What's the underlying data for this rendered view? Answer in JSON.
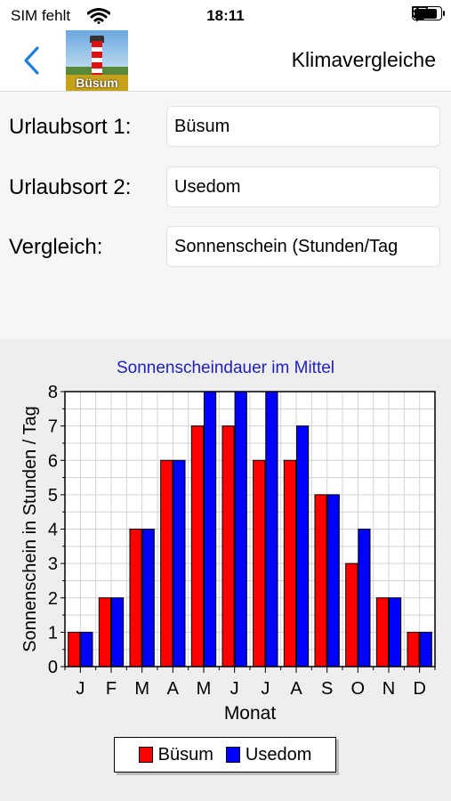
{
  "status_bar": {
    "carrier": "SIM fehlt",
    "time": "18:11",
    "battery_level": 0.9
  },
  "nav": {
    "title": "Klimavergleiche",
    "thumbnail_label": "Büsum"
  },
  "form": {
    "place1_label": "Urlaubsort 1:",
    "place1_value": "Büsum",
    "place2_label": "Urlaubsort 2:",
    "place2_value": "Usedom",
    "compare_label": "Vergleich:",
    "compare_value": "Sonnenschein (Stunden/Tag"
  },
  "colors": {
    "series1": "#ff0000",
    "series2": "#0000ff",
    "title": "#1e1ebe",
    "back": "#1e7fd6"
  },
  "chart_data": {
    "type": "bar",
    "title": "Sonnenscheindauer im Mittel",
    "xlabel": "Monat",
    "ylabel": "Sonnenschein in Stunden / Tag",
    "categories": [
      "J",
      "F",
      "M",
      "A",
      "M",
      "J",
      "J",
      "A",
      "S",
      "O",
      "N",
      "D"
    ],
    "series": [
      {
        "name": "Büsum",
        "values": [
          1,
          2,
          4,
          6,
          7,
          7,
          6,
          6,
          5,
          3,
          2,
          1
        ]
      },
      {
        "name": "Usedom",
        "values": [
          1,
          2,
          4,
          6,
          8,
          8,
          8,
          7,
          5,
          4,
          2,
          1
        ]
      }
    ],
    "yticks": [
      "0",
      "1",
      "2",
      "3",
      "4",
      "5",
      "6",
      "7",
      "8"
    ],
    "ylim": [
      0,
      8
    ],
    "grid": true,
    "legend_position": "bottom"
  }
}
